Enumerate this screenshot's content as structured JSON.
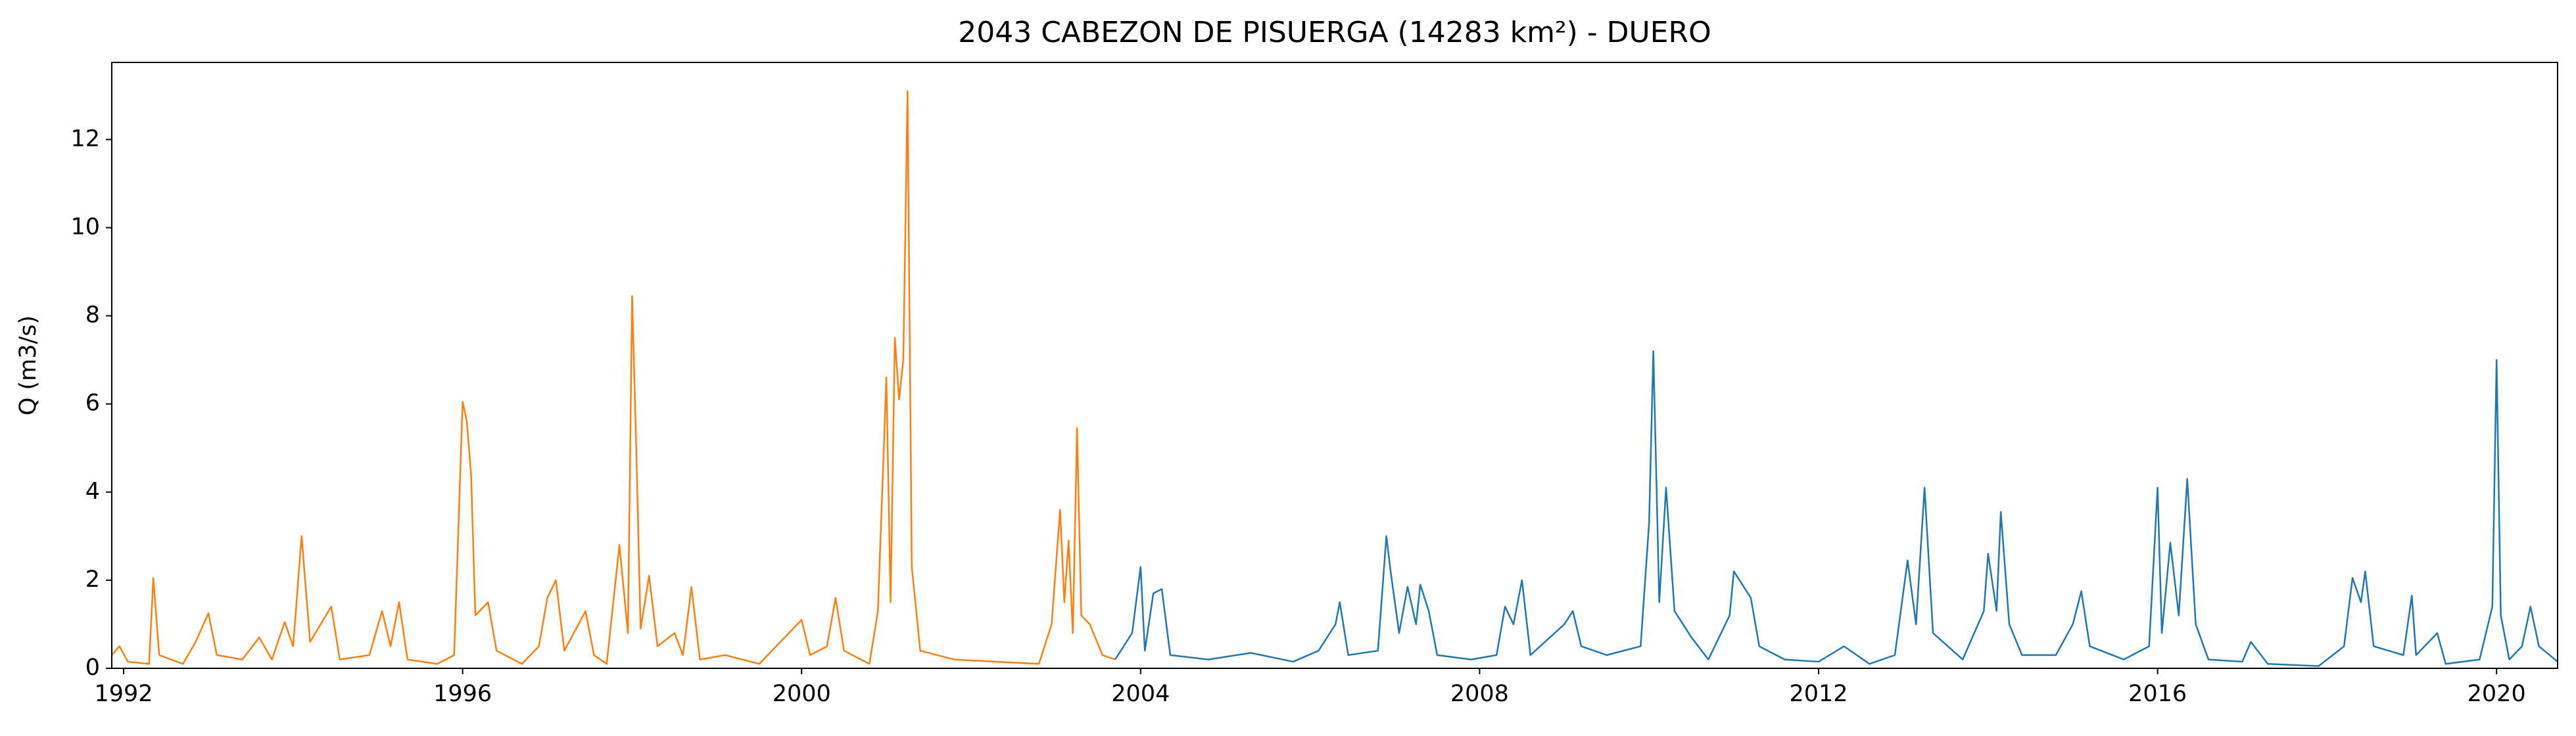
{
  "chart_data": {
    "type": "line",
    "title": "2043 CABEZON DE PISUERGA (14283 km²) - DUERO",
    "ylabel": "Q (m3/s)",
    "xlim": [
      1991.86,
      2020.72
    ],
    "ylim": [
      0,
      13.75
    ],
    "xticks": [
      1992,
      1996,
      2000,
      2004,
      2008,
      2012,
      2016,
      2020
    ],
    "yticks": [
      0,
      2,
      4,
      6,
      8,
      10,
      12
    ],
    "grid": false,
    "series": [
      {
        "color": "#ff7f0e",
        "x": [
          1991.86,
          1991.95,
          1992.05,
          1992.3,
          1992.35,
          1992.42,
          1992.7,
          1992.85,
          1993.0,
          1993.1,
          1993.4,
          1993.6,
          1993.75,
          1993.9,
          1994.0,
          1994.1,
          1994.2,
          1994.45,
          1994.55,
          1994.9,
          1995.05,
          1995.15,
          1995.25,
          1995.35,
          1995.7,
          1995.9,
          1996.0,
          1996.05,
          1996.1,
          1996.15,
          1996.3,
          1996.4,
          1996.7,
          1996.9,
          1997.0,
          1997.1,
          1997.2,
          1997.45,
          1997.55,
          1997.7,
          1997.85,
          1997.95,
          1998.0,
          1998.05,
          1998.1,
          1998.2,
          1998.3,
          1998.5,
          1998.6,
          1998.7,
          1998.8,
          1999.1,
          1999.5,
          1999.85,
          2000.0,
          2000.1,
          2000.3,
          2000.4,
          2000.5,
          2000.8,
          2000.9,
          2001.0,
          2001.05,
          2001.1,
          2001.15,
          2001.2,
          2001.25,
          2001.3,
          2001.4,
          2001.8,
          2002.3,
          2002.8,
          2002.95,
          2003.05,
          2003.1,
          2003.15,
          2003.2,
          2003.25,
          2003.3,
          2003.4,
          2003.55,
          2003.7
        ],
        "values": [
          0.3,
          0.5,
          0.15,
          0.1,
          2.05,
          0.3,
          0.1,
          0.6,
          1.25,
          0.3,
          0.2,
          0.7,
          0.2,
          1.05,
          0.5,
          3.0,
          0.6,
          1.4,
          0.2,
          0.3,
          1.3,
          0.5,
          1.5,
          0.2,
          0.1,
          0.3,
          6.05,
          5.6,
          4.4,
          1.2,
          1.5,
          0.4,
          0.1,
          0.5,
          1.6,
          2.0,
          0.4,
          1.3,
          0.3,
          0.1,
          2.8,
          0.8,
          8.45,
          4.9,
          0.9,
          2.1,
          0.5,
          0.8,
          0.3,
          1.85,
          0.2,
          0.3,
          0.1,
          0.8,
          1.1,
          0.3,
          0.5,
          1.6,
          0.4,
          0.1,
          1.3,
          6.6,
          1.5,
          7.5,
          6.1,
          7.0,
          13.1,
          2.3,
          0.4,
          0.2,
          0.15,
          0.1,
          1.0,
          3.6,
          1.5,
          2.9,
          0.8,
          5.45,
          1.2,
          1.0,
          0.3,
          0.2
        ]
      },
      {
        "color": "#1f77b4",
        "x": [
          2003.7,
          2003.9,
          2004.0,
          2004.05,
          2004.15,
          2004.25,
          2004.35,
          2004.8,
          2005.3,
          2005.8,
          2006.1,
          2006.3,
          2006.35,
          2006.45,
          2006.8,
          2006.9,
          2006.95,
          2007.05,
          2007.15,
          2007.25,
          2007.3,
          2007.4,
          2007.5,
          2007.9,
          2008.2,
          2008.3,
          2008.4,
          2008.5,
          2008.6,
          2009.0,
          2009.1,
          2009.2,
          2009.5,
          2009.9,
          2010.0,
          2010.05,
          2010.12,
          2010.2,
          2010.3,
          2010.5,
          2010.7,
          2010.95,
          2011.0,
          2011.1,
          2011.2,
          2011.3,
          2011.6,
          2012.0,
          2012.3,
          2012.6,
          2012.9,
          2013.05,
          2013.15,
          2013.25,
          2013.35,
          2013.7,
          2013.95,
          2014.0,
          2014.1,
          2014.15,
          2014.25,
          2014.4,
          2014.8,
          2015.0,
          2015.1,
          2015.2,
          2015.6,
          2015.9,
          2016.0,
          2016.05,
          2016.15,
          2016.25,
          2016.35,
          2016.45,
          2016.6,
          2017.0,
          2017.1,
          2017.3,
          2017.9,
          2018.2,
          2018.3,
          2018.4,
          2018.45,
          2018.55,
          2018.9,
          2019.0,
          2019.05,
          2019.3,
          2019.4,
          2019.8,
          2019.95,
          2020.0,
          2020.05,
          2020.15,
          2020.3,
          2020.4,
          2020.5,
          2020.72
        ],
        "values": [
          0.2,
          0.8,
          2.3,
          0.4,
          1.7,
          1.8,
          0.3,
          0.2,
          0.35,
          0.15,
          0.4,
          1.0,
          1.5,
          0.3,
          0.4,
          3.0,
          2.2,
          0.8,
          1.85,
          1.0,
          1.9,
          1.3,
          0.3,
          0.2,
          0.3,
          1.4,
          1.0,
          2.0,
          0.3,
          1.0,
          1.3,
          0.5,
          0.3,
          0.5,
          3.3,
          7.2,
          1.5,
          4.1,
          1.3,
          0.7,
          0.2,
          1.2,
          2.2,
          1.9,
          1.6,
          0.5,
          0.2,
          0.15,
          0.5,
          0.1,
          0.3,
          2.45,
          1.0,
          4.1,
          0.8,
          0.2,
          1.3,
          2.6,
          1.3,
          3.55,
          1.0,
          0.3,
          0.3,
          1.0,
          1.75,
          0.5,
          0.2,
          0.5,
          4.1,
          0.8,
          2.85,
          1.2,
          4.3,
          1.0,
          0.2,
          0.15,
          0.6,
          0.1,
          0.05,
          0.5,
          2.05,
          1.5,
          2.2,
          0.5,
          0.3,
          1.65,
          0.3,
          0.8,
          0.1,
          0.2,
          1.4,
          7.0,
          1.2,
          0.2,
          0.5,
          1.4,
          0.5,
          0.15
        ]
      }
    ]
  }
}
